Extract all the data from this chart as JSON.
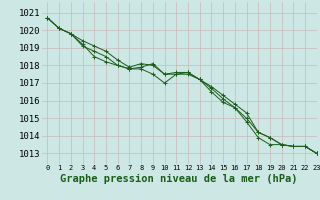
{
  "title": "Graphe pression niveau de la mer (hPa)",
  "background_color": "#cde8e4",
  "grid_color": "#c8b8b8",
  "line_color": "#1a5c1a",
  "marker_color": "#1a5c1a",
  "xlim": [
    -0.5,
    23
  ],
  "ylim": [
    1012.4,
    1021.6
  ],
  "yticks": [
    1013,
    1014,
    1015,
    1016,
    1017,
    1018,
    1019,
    1020,
    1021
  ],
  "xticks": [
    0,
    1,
    2,
    3,
    4,
    5,
    6,
    7,
    8,
    9,
    10,
    11,
    12,
    13,
    14,
    15,
    16,
    17,
    18,
    19,
    20,
    21,
    22,
    23
  ],
  "series": [
    [
      1020.7,
      1020.1,
      1019.8,
      1019.4,
      1019.1,
      1018.8,
      1018.3,
      1017.9,
      1018.1,
      1018.0,
      1017.5,
      1017.5,
      1017.5,
      1017.2,
      1016.5,
      1015.9,
      1015.6,
      1014.8,
      1013.9,
      1013.5,
      1013.5,
      1013.4,
      1013.4,
      1013.0
    ],
    [
      1020.7,
      1020.1,
      1019.8,
      1019.2,
      1018.5,
      1018.2,
      1018.0,
      1017.8,
      1017.9,
      1018.1,
      1017.5,
      1017.6,
      1017.6,
      1017.2,
      1016.8,
      1016.3,
      1015.8,
      1015.3,
      1014.2,
      1013.9,
      1013.5,
      1013.4,
      1013.4,
      1013.0
    ],
    [
      1020.7,
      1020.1,
      1019.8,
      1019.1,
      1018.8,
      1018.5,
      1018.0,
      1017.8,
      1017.8,
      1017.5,
      1017.0,
      1017.5,
      1017.6,
      1017.2,
      1016.7,
      1016.1,
      1015.6,
      1015.0,
      1014.2,
      1013.9,
      1013.5,
      1013.4,
      1013.4,
      1013.0
    ]
  ],
  "xlabel_fontsize": 7.5,
  "tick_fontsize": 6.5,
  "xtick_fontsize": 5.0
}
